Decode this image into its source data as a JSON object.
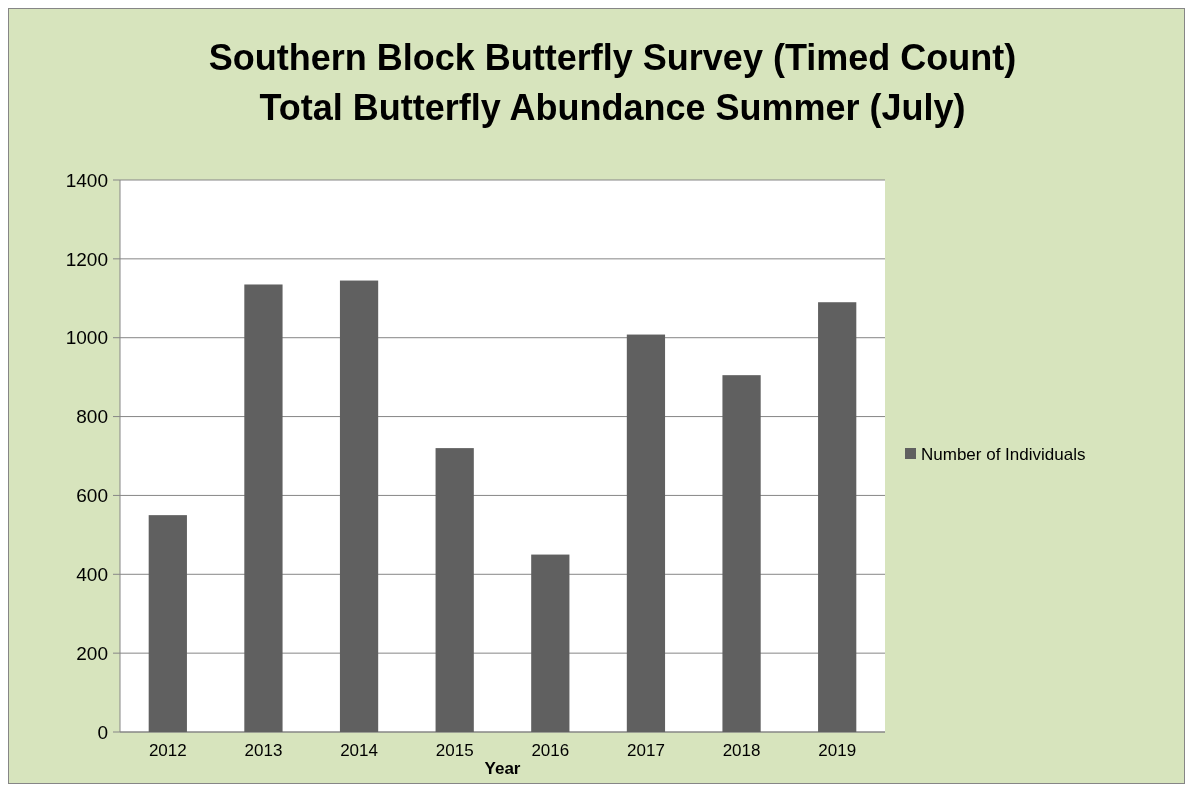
{
  "chart_data": {
    "type": "bar",
    "title": "Southern Block Butterfly Survey (Timed Count)",
    "subtitle": "Total Butterfly Abundance Summer (July)",
    "xlabel": "Year",
    "categories": [
      "2012",
      "2013",
      "2014",
      "2015",
      "2016",
      "2017",
      "2018",
      "2019"
    ],
    "series": [
      {
        "name": "Number of Individuals",
        "color": "#606060",
        "values": [
          550,
          1135,
          1145,
          720,
          450,
          1008,
          905,
          1090
        ]
      }
    ],
    "ylim": [
      0,
      1400
    ],
    "yticks": [
      0,
      200,
      400,
      600,
      800,
      1000,
      1200,
      1400
    ],
    "grid": "y",
    "legend": "right"
  }
}
